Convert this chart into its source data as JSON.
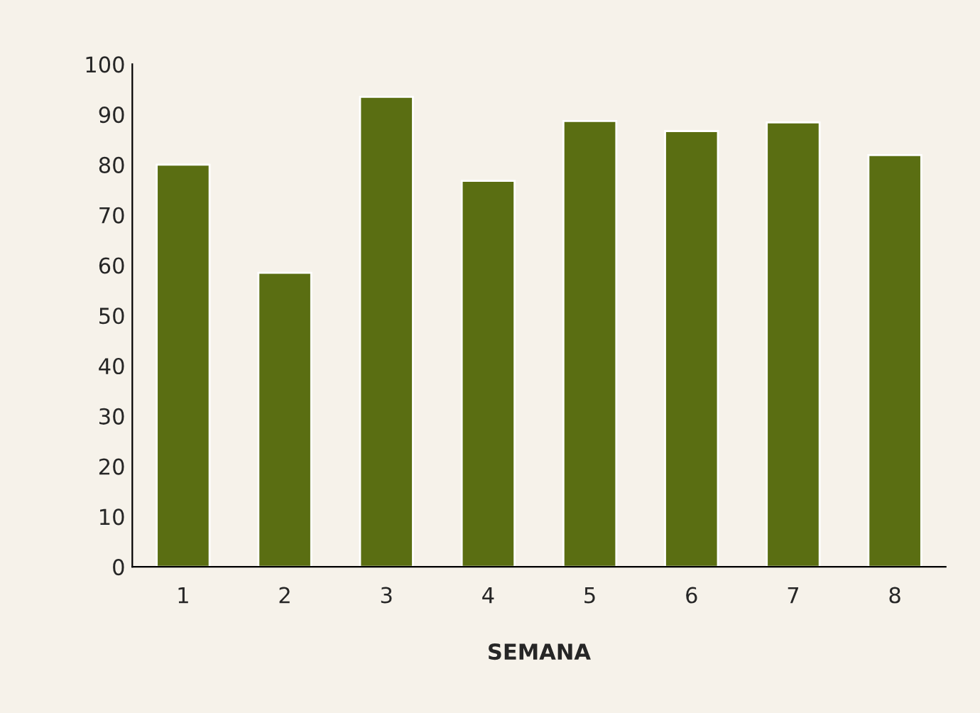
{
  "chart_data": {
    "type": "bar",
    "xlabel": "SEMANA",
    "categories": [
      "1",
      "2",
      "3",
      "4",
      "5",
      "6",
      "7",
      "8"
    ],
    "values": [
      80,
      58.5,
      93.5,
      76.8,
      88.7,
      86.7,
      88.4,
      81.9
    ],
    "color": "#5a6e12",
    "ylim": [
      0,
      100
    ],
    "yticks": [
      0,
      10,
      20,
      30,
      40,
      50,
      60,
      70,
      80,
      90,
      100
    ],
    "grid": false
  }
}
